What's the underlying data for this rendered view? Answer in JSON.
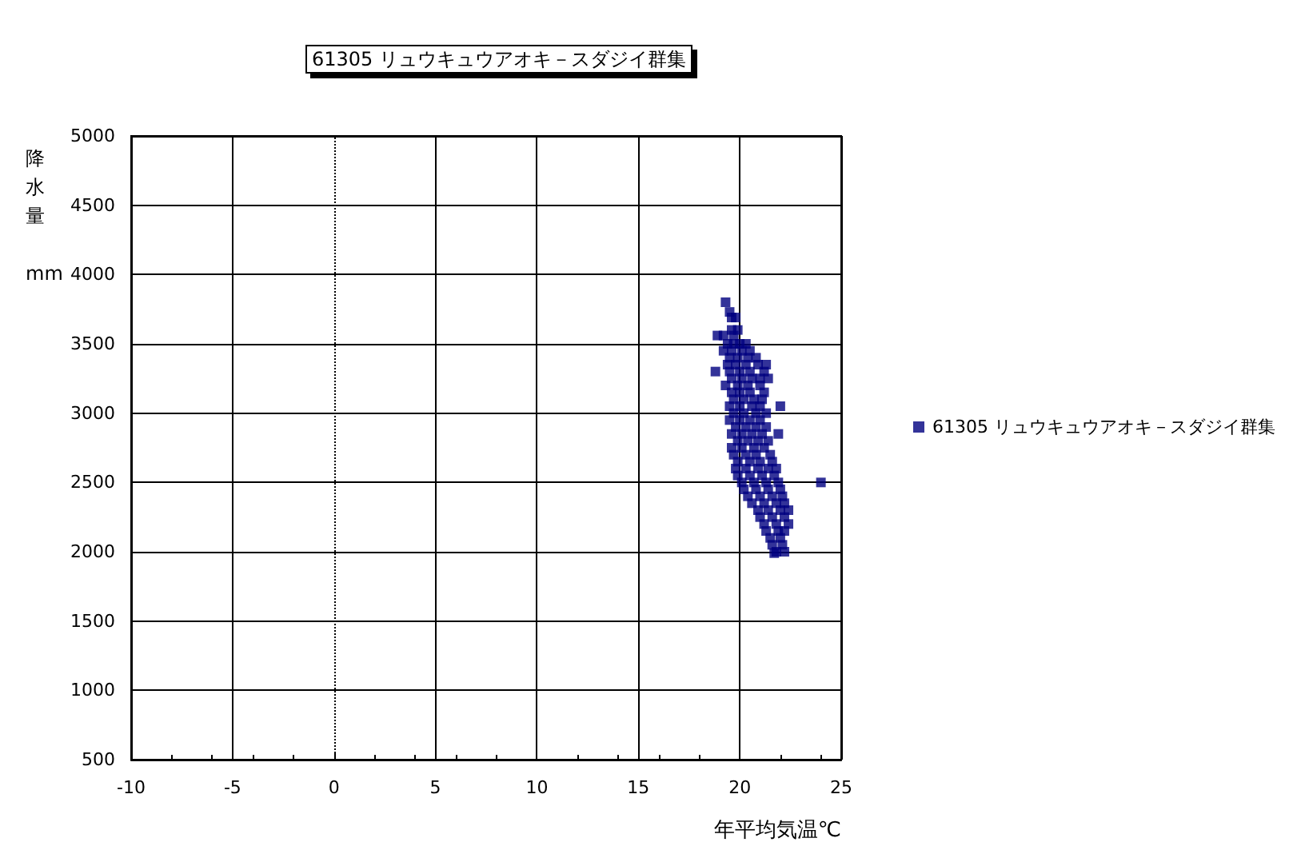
{
  "chart_data": {
    "type": "scatter",
    "title": "61305 リュウキュウアオキ－スダジイ群集",
    "xlabel": "年平均気温℃",
    "ylabel": "降水量 mm",
    "xlim": [
      -10,
      25
    ],
    "xticks": [
      -10,
      -5,
      0,
      5,
      10,
      15,
      20,
      25
    ],
    "ylim": [
      500,
      5000
    ],
    "yticks": [
      500,
      1000,
      1500,
      2000,
      2500,
      3000,
      3500,
      4000,
      4500,
      5000
    ],
    "grid": true,
    "legend": "right",
    "marker": "square",
    "ref_lines": [
      {
        "axis": "x",
        "value": 0,
        "line_style": "dotted",
        "color": "#000000"
      }
    ],
    "series": [
      {
        "name": "61305 リュウキュウアオキ－スダジイ群集",
        "color": "#000080",
        "x": [
          19.3,
          19.5,
          19.6,
          19.8,
          19.6,
          19.9,
          18.9,
          19.2,
          19.7,
          19.4,
          19.7,
          20.0,
          20.3,
          19.2,
          19.6,
          20.1,
          20.5,
          19.5,
          19.9,
          20.4,
          20.8,
          19.4,
          19.8,
          20.3,
          20.9,
          21.3,
          18.8,
          19.5,
          20.0,
          20.5,
          21.2,
          19.6,
          20.1,
          20.6,
          21.0,
          21.4,
          19.3,
          19.9,
          20.4,
          21.0,
          19.6,
          20.0,
          20.5,
          21.2,
          19.7,
          20.2,
          20.7,
          21.1,
          19.5,
          20.0,
          20.6,
          21.0,
          22.0,
          19.7,
          20.2,
          20.8,
          21.3,
          19.5,
          20.0,
          20.5,
          21.0,
          19.8,
          20.3,
          20.8,
          21.3,
          19.6,
          20.1,
          20.6,
          21.1,
          21.9,
          19.9,
          20.4,
          20.9,
          21.4,
          19.6,
          20.1,
          20.7,
          21.2,
          19.7,
          20.3,
          20.8,
          21.5,
          19.9,
          20.5,
          21.0,
          21.6,
          19.8,
          20.3,
          20.9,
          21.4,
          21.8,
          19.9,
          20.5,
          21.1,
          21.7,
          20.1,
          20.7,
          21.3,
          21.9,
          24.0,
          20.2,
          20.8,
          21.4,
          22.0,
          20.4,
          21.0,
          21.6,
          22.1,
          20.6,
          21.2,
          21.8,
          22.2,
          20.9,
          21.4,
          22.0,
          22.4,
          21.0,
          21.6,
          22.2,
          21.2,
          21.8,
          22.4,
          21.3,
          21.9,
          22.2,
          21.5,
          22.0,
          21.6,
          22.1,
          21.8,
          22.2,
          21.7
        ],
        "values": [
          3800,
          3730,
          3690,
          3690,
          3600,
          3600,
          3560,
          3560,
          3560,
          3500,
          3500,
          3500,
          3500,
          3450,
          3450,
          3450,
          3450,
          3400,
          3400,
          3400,
          3400,
          3350,
          3350,
          3350,
          3350,
          3350,
          3300,
          3300,
          3300,
          3300,
          3300,
          3250,
          3250,
          3250,
          3250,
          3250,
          3200,
          3200,
          3200,
          3200,
          3150,
          3150,
          3150,
          3150,
          3100,
          3100,
          3100,
          3100,
          3050,
          3050,
          3050,
          3050,
          3050,
          3000,
          3000,
          3000,
          3000,
          2950,
          2950,
          2950,
          2950,
          2900,
          2900,
          2900,
          2900,
          2850,
          2850,
          2850,
          2850,
          2850,
          2800,
          2800,
          2800,
          2800,
          2750,
          2750,
          2750,
          2750,
          2700,
          2700,
          2700,
          2700,
          2650,
          2650,
          2650,
          2650,
          2600,
          2600,
          2600,
          2600,
          2600,
          2550,
          2550,
          2550,
          2550,
          2500,
          2500,
          2500,
          2500,
          2500,
          2450,
          2450,
          2450,
          2450,
          2400,
          2400,
          2400,
          2400,
          2350,
          2350,
          2350,
          2350,
          2300,
          2300,
          2300,
          2300,
          2250,
          2250,
          2250,
          2200,
          2200,
          2200,
          2150,
          2150,
          2150,
          2100,
          2100,
          2050,
          2050,
          2000,
          2000,
          1990
        ]
      }
    ]
  }
}
